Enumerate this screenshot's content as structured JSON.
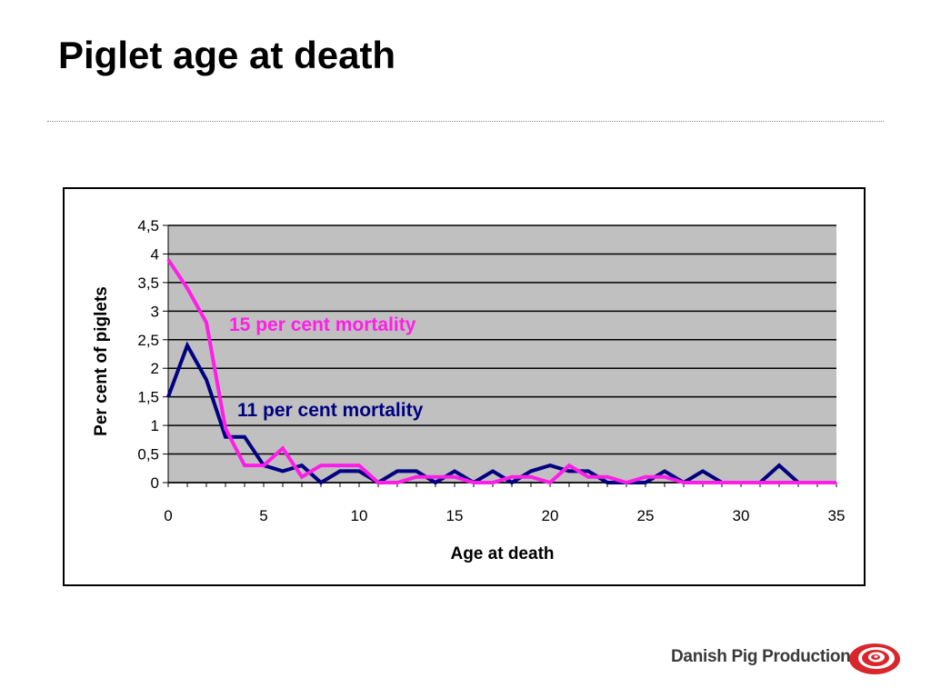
{
  "slide": {
    "title": "Piglet age at death",
    "logo_text": "Danish Pig Production"
  },
  "colors": {
    "series_15": "#ff1ee8",
    "series_11": "#000080",
    "plot_bg": "#c0c0c0",
    "logo_red": "#d8262c"
  },
  "chart_data": {
    "type": "line",
    "xlabel": "Age at death",
    "ylabel": "Per cent of piglets",
    "xlim": [
      0,
      35
    ],
    "ylim": [
      0,
      4.5
    ],
    "x_ticks": [
      "0",
      "5",
      "10",
      "15",
      "20",
      "25",
      "30",
      "35"
    ],
    "y_ticks": [
      "0",
      "0,5",
      "1",
      "1,5",
      "2",
      "2,5",
      "3",
      "3,5",
      "4",
      "4,5"
    ],
    "grid": true,
    "legend": "none",
    "annotations": [
      {
        "text": "15 per cent mortality",
        "series": 0
      },
      {
        "text": "11 per cent mortality",
        "series": 1
      }
    ],
    "series": [
      {
        "name": "15 per cent mortality",
        "x": [
          0,
          1,
          2,
          3,
          4,
          5,
          6,
          7,
          8,
          9,
          10,
          11,
          12,
          13,
          14,
          15,
          16,
          17,
          18,
          19,
          20,
          21,
          22,
          23,
          24,
          25,
          26,
          27,
          28,
          29,
          30,
          31,
          32,
          33,
          34,
          35
        ],
        "values": [
          3.9,
          3.4,
          2.8,
          0.95,
          0.3,
          0.3,
          0.6,
          0.1,
          0.3,
          0.3,
          0.3,
          0,
          0,
          0.1,
          0.1,
          0.1,
          0,
          0,
          0.1,
          0.1,
          0,
          0.3,
          0.1,
          0.1,
          0,
          0.1,
          0.1,
          0,
          0,
          0,
          0,
          0,
          0,
          0,
          0,
          0
        ]
      },
      {
        "name": "11 per cent mortality",
        "x": [
          0,
          1,
          2,
          3,
          4,
          5,
          6,
          7,
          8,
          9,
          10,
          11,
          12,
          13,
          14,
          15,
          16,
          17,
          18,
          19,
          20,
          21,
          22,
          23,
          24,
          25,
          26,
          27,
          28,
          29,
          30,
          31,
          32,
          33,
          34,
          35
        ],
        "values": [
          1.5,
          2.4,
          1.8,
          0.8,
          0.8,
          0.3,
          0.2,
          0.3,
          0,
          0.2,
          0.2,
          0,
          0.2,
          0.2,
          0,
          0.2,
          0,
          0.2,
          0,
          0.2,
          0.3,
          0.2,
          0.2,
          0,
          0,
          0,
          0.2,
          0,
          0.2,
          0,
          0,
          0,
          0.3,
          0,
          0,
          0
        ]
      }
    ]
  }
}
